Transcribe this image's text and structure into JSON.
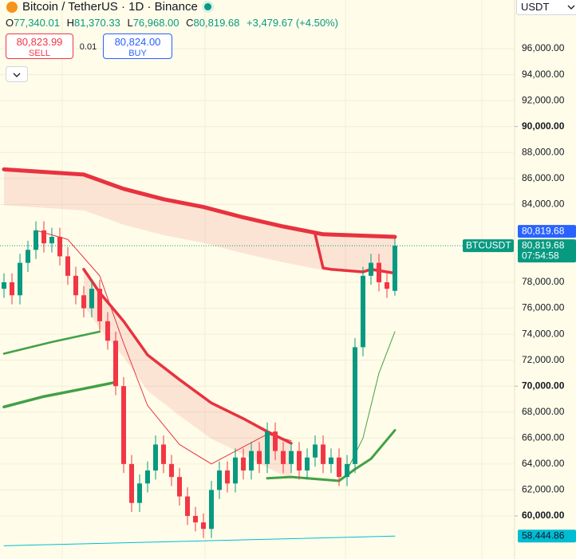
{
  "header": {
    "symbol": "Bitcoin / TetherUS · 1D · Binance",
    "ohlc": [
      {
        "key": "O",
        "value": "77,340.01"
      },
      {
        "key": "H",
        "value": "81,370.33"
      },
      {
        "key": "L",
        "value": "76,968.00"
      },
      {
        "key": "C",
        "value": "80,819.68"
      }
    ],
    "change": "+3,479.67 (+4.50%)",
    "sell_price": "80,823.99",
    "sell": "SELL",
    "spread": "0.01",
    "buy_price": "80,824.00",
    "buy": "BUY",
    "currency": "USDT"
  },
  "chart_data": {
    "type": "candlestick",
    "ylim": [
      56680,
      99750
    ],
    "yticks": [
      {
        "value": 96000,
        "label": "96,000.00"
      },
      {
        "value": 94000,
        "label": "94,000.00"
      },
      {
        "value": 92000,
        "label": "92,000.00"
      },
      {
        "value": 90000,
        "label": "90,000.00"
      },
      {
        "value": 88000,
        "label": "88,000.00"
      },
      {
        "value": 86000,
        "label": "86,000.00"
      },
      {
        "value": 84000,
        "label": "84,000.00"
      },
      {
        "value": 78000,
        "label": "78,000.00"
      },
      {
        "value": 76000,
        "label": "76,000.00"
      },
      {
        "value": 74000,
        "label": "74,000.00"
      },
      {
        "value": 72000,
        "label": "72,000.00"
      },
      {
        "value": 70000,
        "label": "70,000.00"
      },
      {
        "value": 68000,
        "label": "68,000.00"
      },
      {
        "value": 66000,
        "label": "66,000.00"
      },
      {
        "value": 64000,
        "label": "64,000.00"
      },
      {
        "value": 62000,
        "label": "62,000.00"
      },
      {
        "value": 60000,
        "label": "60,000.00"
      }
    ],
    "major_yticks": [
      90000,
      70000,
      60000
    ],
    "up_color": "#089981",
    "down_color": "#f23645",
    "open": [
      77500,
      78000,
      77000,
      79500,
      80500,
      82000,
      81000,
      81500,
      80000,
      78500,
      77000,
      76000,
      77500,
      75000,
      73500,
      70000,
      64000,
      61000,
      62500,
      63500,
      65500,
      64000,
      63000,
      61500,
      60000,
      59500,
      59000,
      62000,
      63500,
      62500,
      64500,
      63500,
      65000,
      64000,
      66500,
      65000,
      64000,
      65000,
      63500,
      64500,
      65500,
      64000,
      64500,
      63000,
      64000,
      73000,
      78500,
      79500,
      78000,
      77340.01
    ],
    "high": [
      78700,
      78700,
      80200,
      81200,
      82700,
      82700,
      82200,
      82200,
      80700,
      79200,
      77700,
      78200,
      78200,
      75700,
      74200,
      70700,
      64700,
      63200,
      64200,
      66200,
      66200,
      64700,
      63700,
      62200,
      60700,
      60200,
      62700,
      64200,
      64200,
      65200,
      65200,
      65700,
      65700,
      67200,
      67200,
      65700,
      65700,
      65700,
      65200,
      66200,
      66200,
      65200,
      65200,
      64700,
      73700,
      79200,
      80200,
      80200,
      78700,
      81370.33
    ],
    "low": [
      76800,
      76300,
      76300,
      78800,
      79800,
      80300,
      80300,
      79300,
      77800,
      76300,
      75300,
      75300,
      74300,
      72800,
      69300,
      63300,
      60300,
      60300,
      61800,
      62800,
      63300,
      62300,
      60800,
      59300,
      58800,
      58300,
      58300,
      61300,
      61800,
      61800,
      62800,
      62800,
      63300,
      63300,
      64300,
      63300,
      63300,
      62800,
      62800,
      63800,
      63300,
      63300,
      62300,
      62300,
      63300,
      72300,
      77800,
      77300,
      76800,
      76968
    ],
    "close": [
      78000,
      77000,
      79500,
      80500,
      82000,
      81000,
      81500,
      80000,
      78500,
      77000,
      76000,
      77500,
      75000,
      73500,
      70000,
      64000,
      61000,
      62500,
      63500,
      65500,
      64000,
      63000,
      61500,
      60000,
      59500,
      59000,
      62000,
      63500,
      62500,
      64500,
      63500,
      65000,
      64000,
      66500,
      65000,
      64000,
      65000,
      63500,
      64500,
      65500,
      64000,
      64500,
      63000,
      64000,
      73000,
      78500,
      79500,
      78000,
      77500,
      80819.68
    ],
    "lines": [
      {
        "color": "#e8323f",
        "width": 5,
        "band": true,
        "x": [
          0,
          10,
          15,
          20,
          25,
          30,
          35,
          40,
          49
        ],
        "values": [
          86700,
          86300,
          85200,
          84400,
          83800,
          83000,
          82300,
          81700,
          81500
        ]
      },
      {
        "color": "#e8323f",
        "width": 3.5,
        "band": false,
        "x": [
          39,
          40,
          41,
          45,
          46,
          49
        ],
        "values": [
          81700,
          79100,
          79000,
          78800,
          79000,
          78700
        ]
      },
      {
        "color": "#e8323f",
        "width": 3.5,
        "band": true,
        "x": [
          10,
          12,
          15,
          18,
          22,
          26,
          30,
          33,
          36
        ],
        "values": [
          79000,
          77200,
          75000,
          72400,
          70500,
          68700,
          67500,
          66500,
          65600
        ]
      },
      {
        "color": "#e8323f",
        "width": 1,
        "band": false,
        "x": [
          4,
          8,
          12,
          15,
          18,
          22,
          26,
          33,
          36
        ],
        "values": [
          82000,
          81300,
          78500,
          73300,
          68500,
          65500,
          64000,
          66300,
          65800
        ]
      },
      {
        "color": "#43a047",
        "width": 3.5,
        "band": false,
        "x": [
          0,
          5,
          10,
          14
        ],
        "values": [
          68400,
          69200,
          69800,
          70300
        ]
      },
      {
        "color": "#43a047",
        "width": 2.5,
        "band": false,
        "x": [
          0,
          6,
          6,
          12
        ],
        "values": [
          72500,
          73400,
          73400,
          74200
        ]
      },
      {
        "color": "#43a047",
        "width": 3,
        "band": false,
        "x": [
          33,
          36,
          42,
          44,
          46,
          49
        ],
        "values": [
          62900,
          63000,
          62700,
          63600,
          64400,
          66600
        ]
      },
      {
        "color": "#43a047",
        "width": 1,
        "band": false,
        "x": [
          43,
          45,
          47,
          49
        ],
        "values": [
          63500,
          66000,
          71000,
          74200
        ]
      },
      {
        "color": "#00bcd4",
        "width": 1,
        "band": false,
        "x": [
          0,
          49
        ],
        "values": [
          57700,
          58444.86
        ]
      }
    ],
    "price_labels": [
      {
        "value": 80819.68,
        "label": "80,819.68",
        "color": "#2962ff"
      },
      {
        "value": 80819.68,
        "label": "80,819.68",
        "symbol": "BTCUSDT",
        "countdown": "07:54:58",
        "color": "#089981"
      },
      {
        "value": 58444.86,
        "label": "58,444.86",
        "color": "#00bcd4"
      }
    ]
  }
}
